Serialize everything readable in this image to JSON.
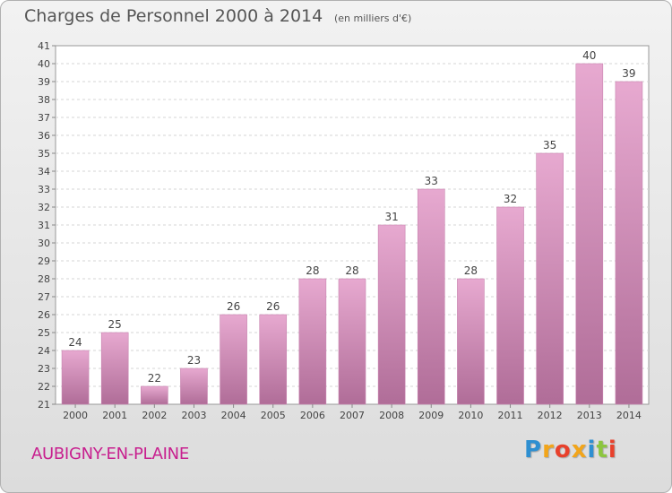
{
  "header": {
    "title": "Charges de Personnel 2000 à 2014",
    "subtitle": "(en milliers d'€)"
  },
  "footer": {
    "location": "AUBIGNY-EN-PLAINE",
    "brand": {
      "letters": [
        "P",
        "r",
        "o",
        "x",
        "i",
        "t",
        "i"
      ],
      "colors": [
        "#2e8fd1",
        "#f2a51a",
        "#e8412c",
        "#f2a51a",
        "#2e8fd1",
        "#8cc63f",
        "#e8412c"
      ]
    }
  },
  "chart_data": {
    "type": "bar",
    "categories": [
      "2000",
      "2001",
      "2002",
      "2003",
      "2004",
      "2005",
      "2006",
      "2007",
      "2008",
      "2009",
      "2010",
      "2011",
      "2012",
      "2013",
      "2014"
    ],
    "values": [
      24,
      25,
      22,
      23,
      26,
      26,
      28,
      28,
      31,
      33,
      28,
      32,
      35,
      40,
      39
    ],
    "ylim": [
      21,
      41
    ],
    "yticks": [
      21,
      22,
      23,
      24,
      25,
      26,
      27,
      28,
      29,
      30,
      31,
      32,
      33,
      34,
      35,
      36,
      37,
      38,
      39,
      40,
      41
    ],
    "grid": true,
    "data_labels": true,
    "colors": {
      "bar_top": "#e7a9d0",
      "bar_bottom": "#b06d98",
      "bar_edge": "#c884b0"
    }
  }
}
